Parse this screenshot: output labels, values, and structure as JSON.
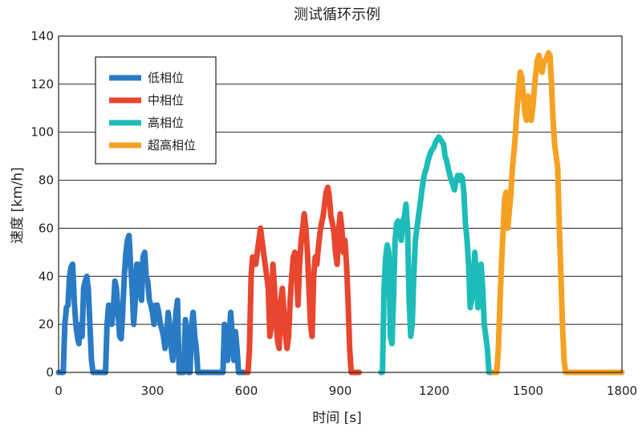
{
  "chart_data": {
    "type": "line",
    "title": "测试循环示例",
    "xlabel": "时间 [s]",
    "ylabel": "速度 [km/h]",
    "xlim": [
      0,
      1800
    ],
    "ylim": [
      0,
      140
    ],
    "x_ticks": [
      0,
      300,
      600,
      900,
      1200,
      1500,
      1800
    ],
    "y_ticks": [
      0,
      20,
      40,
      60,
      80,
      100,
      120,
      140
    ],
    "grid": "horizontal",
    "legend_position": "top-left",
    "series": [
      {
        "name": "低相位",
        "color": "#2a7bc4",
        "points": [
          [
            0,
            0
          ],
          [
            15,
            0
          ],
          [
            20,
            20
          ],
          [
            25,
            27
          ],
          [
            30,
            28
          ],
          [
            35,
            40
          ],
          [
            40,
            44
          ],
          [
            45,
            45
          ],
          [
            50,
            30
          ],
          [
            55,
            20
          ],
          [
            60,
            15
          ],
          [
            65,
            12
          ],
          [
            70,
            20
          ],
          [
            75,
            15
          ],
          [
            80,
            35
          ],
          [
            85,
            38
          ],
          [
            90,
            40
          ],
          [
            95,
            35
          ],
          [
            100,
            20
          ],
          [
            105,
            5
          ],
          [
            110,
            0
          ],
          [
            150,
            0
          ],
          [
            155,
            20
          ],
          [
            160,
            28
          ],
          [
            165,
            25
          ],
          [
            170,
            20
          ],
          [
            175,
            27
          ],
          [
            180,
            38
          ],
          [
            185,
            35
          ],
          [
            190,
            25
          ],
          [
            195,
            15
          ],
          [
            200,
            14
          ],
          [
            205,
            25
          ],
          [
            210,
            40
          ],
          [
            215,
            50
          ],
          [
            220,
            55
          ],
          [
            225,
            57
          ],
          [
            230,
            45
          ],
          [
            235,
            35
          ],
          [
            240,
            20
          ],
          [
            245,
            30
          ],
          [
            250,
            45
          ],
          [
            255,
            45
          ],
          [
            260,
            35
          ],
          [
            265,
            30
          ],
          [
            270,
            48
          ],
          [
            275,
            50
          ],
          [
            280,
            40
          ],
          [
            285,
            38
          ],
          [
            290,
            30
          ],
          [
            295,
            28
          ],
          [
            300,
            25
          ],
          [
            305,
            20
          ],
          [
            310,
            28
          ],
          [
            315,
            28
          ],
          [
            320,
            25
          ],
          [
            325,
            20
          ],
          [
            330,
            18
          ],
          [
            335,
            15
          ],
          [
            340,
            10
          ],
          [
            345,
            15
          ],
          [
            350,
            25
          ],
          [
            355,
            20
          ],
          [
            360,
            10
          ],
          [
            365,
            5
          ],
          [
            370,
            15
          ],
          [
            375,
            25
          ],
          [
            380,
            30
          ],
          [
            385,
            0
          ],
          [
            400,
            0
          ],
          [
            405,
            22
          ],
          [
            410,
            15
          ],
          [
            415,
            0
          ],
          [
            420,
            0
          ],
          [
            425,
            20
          ],
          [
            430,
            25
          ],
          [
            435,
            15
          ],
          [
            440,
            10
          ],
          [
            445,
            0
          ],
          [
            525,
            0
          ],
          [
            530,
            20
          ],
          [
            535,
            15
          ],
          [
            540,
            5
          ],
          [
            545,
            15
          ],
          [
            550,
            25
          ],
          [
            555,
            15
          ],
          [
            560,
            5
          ],
          [
            565,
            17
          ],
          [
            570,
            10
          ],
          [
            575,
            0
          ],
          [
            600,
            0
          ]
        ]
      },
      {
        "name": "中相位",
        "color": "#e8462f",
        "points": [
          [
            600,
            0
          ],
          [
            605,
            0
          ],
          [
            610,
            10
          ],
          [
            615,
            40
          ],
          [
            620,
            48
          ],
          [
            625,
            45
          ],
          [
            630,
            45
          ],
          [
            635,
            50
          ],
          [
            640,
            55
          ],
          [
            645,
            60
          ],
          [
            650,
            55
          ],
          [
            655,
            50
          ],
          [
            660,
            45
          ],
          [
            665,
            40
          ],
          [
            670,
            35
          ],
          [
            675,
            15
          ],
          [
            680,
            20
          ],
          [
            685,
            45
          ],
          [
            690,
            35
          ],
          [
            695,
            20
          ],
          [
            700,
            13
          ],
          [
            705,
            10
          ],
          [
            710,
            30
          ],
          [
            715,
            35
          ],
          [
            720,
            25
          ],
          [
            725,
            15
          ],
          [
            730,
            10
          ],
          [
            735,
            15
          ],
          [
            740,
            30
          ],
          [
            745,
            40
          ],
          [
            750,
            48
          ],
          [
            755,
            50
          ],
          [
            760,
            45
          ],
          [
            765,
            28
          ],
          [
            770,
            45
          ],
          [
            775,
            55
          ],
          [
            780,
            60
          ],
          [
            785,
            66
          ],
          [
            790,
            60
          ],
          [
            795,
            50
          ],
          [
            800,
            35
          ],
          [
            805,
            20
          ],
          [
            810,
            15
          ],
          [
            815,
            40
          ],
          [
            820,
            48
          ],
          [
            825,
            45
          ],
          [
            830,
            52
          ],
          [
            835,
            58
          ],
          [
            840,
            62
          ],
          [
            845,
            65
          ],
          [
            850,
            70
          ],
          [
            855,
            75
          ],
          [
            860,
            77
          ],
          [
            865,
            73
          ],
          [
            870,
            65
          ],
          [
            875,
            62
          ],
          [
            880,
            58
          ],
          [
            885,
            50
          ],
          [
            890,
            45
          ],
          [
            895,
            60
          ],
          [
            900,
            66
          ],
          [
            905,
            60
          ],
          [
            910,
            50
          ],
          [
            915,
            55
          ],
          [
            920,
            45
          ],
          [
            925,
            30
          ],
          [
            930,
            10
          ],
          [
            935,
            0
          ],
          [
            960,
            0
          ]
        ]
      },
      {
        "name": "高相位",
        "color": "#1ebcb8",
        "points": [
          [
            1030,
            0
          ],
          [
            1035,
            0
          ],
          [
            1040,
            35
          ],
          [
            1045,
            48
          ],
          [
            1050,
            53
          ],
          [
            1055,
            50
          ],
          [
            1060,
            15
          ],
          [
            1065,
            12
          ],
          [
            1070,
            30
          ],
          [
            1075,
            55
          ],
          [
            1080,
            62
          ],
          [
            1085,
            63
          ],
          [
            1090,
            60
          ],
          [
            1095,
            55
          ],
          [
            1100,
            63
          ],
          [
            1105,
            65
          ],
          [
            1110,
            70
          ],
          [
            1115,
            60
          ],
          [
            1120,
            30
          ],
          [
            1125,
            15
          ],
          [
            1130,
            20
          ],
          [
            1135,
            40
          ],
          [
            1140,
            55
          ],
          [
            1145,
            60
          ],
          [
            1150,
            65
          ],
          [
            1155,
            70
          ],
          [
            1160,
            75
          ],
          [
            1165,
            80
          ],
          [
            1170,
            83
          ],
          [
            1175,
            85
          ],
          [
            1180,
            88
          ],
          [
            1185,
            90
          ],
          [
            1190,
            92
          ],
          [
            1195,
            93
          ],
          [
            1200,
            94
          ],
          [
            1205,
            96
          ],
          [
            1210,
            97
          ],
          [
            1215,
            98
          ],
          [
            1220,
            97
          ],
          [
            1225,
            96
          ],
          [
            1230,
            95
          ],
          [
            1235,
            90
          ],
          [
            1240,
            88
          ],
          [
            1245,
            85
          ],
          [
            1250,
            82
          ],
          [
            1255,
            80
          ],
          [
            1260,
            78
          ],
          [
            1265,
            76
          ],
          [
            1270,
            80
          ],
          [
            1275,
            82
          ],
          [
            1280,
            80
          ],
          [
            1285,
            82
          ],
          [
            1290,
            81
          ],
          [
            1295,
            75
          ],
          [
            1300,
            62
          ],
          [
            1305,
            55
          ],
          [
            1310,
            45
          ],
          [
            1315,
            27
          ],
          [
            1320,
            30
          ],
          [
            1325,
            38
          ],
          [
            1330,
            50
          ],
          [
            1335,
            40
          ],
          [
            1340,
            27
          ],
          [
            1345,
            35
          ],
          [
            1350,
            45
          ],
          [
            1355,
            35
          ],
          [
            1360,
            20
          ],
          [
            1365,
            15
          ],
          [
            1370,
            10
          ],
          [
            1375,
            0
          ],
          [
            1390,
            0
          ]
        ]
      },
      {
        "name": "超高相位",
        "color": "#f5a122",
        "points": [
          [
            1390,
            0
          ],
          [
            1400,
            0
          ],
          [
            1405,
            10
          ],
          [
            1410,
            28
          ],
          [
            1415,
            45
          ],
          [
            1420,
            58
          ],
          [
            1425,
            72
          ],
          [
            1430,
            75
          ],
          [
            1435,
            60
          ],
          [
            1440,
            67
          ],
          [
            1445,
            74
          ],
          [
            1450,
            85
          ],
          [
            1455,
            92
          ],
          [
            1460,
            100
          ],
          [
            1465,
            110
          ],
          [
            1470,
            118
          ],
          [
            1475,
            125
          ],
          [
            1480,
            123
          ],
          [
            1485,
            115
          ],
          [
            1490,
            108
          ],
          [
            1495,
            105
          ],
          [
            1500,
            115
          ],
          [
            1505,
            110
          ],
          [
            1510,
            105
          ],
          [
            1515,
            110
          ],
          [
            1520,
            118
          ],
          [
            1525,
            125
          ],
          [
            1530,
            130
          ],
          [
            1535,
            132
          ],
          [
            1540,
            128
          ],
          [
            1545,
            125
          ],
          [
            1550,
            129
          ],
          [
            1555,
            130
          ],
          [
            1560,
            131
          ],
          [
            1565,
            133
          ],
          [
            1570,
            132
          ],
          [
            1575,
            120
          ],
          [
            1580,
            105
          ],
          [
            1585,
            95
          ],
          [
            1590,
            90
          ],
          [
            1595,
            85
          ],
          [
            1600,
            60
          ],
          [
            1605,
            40
          ],
          [
            1610,
            20
          ],
          [
            1615,
            5
          ],
          [
            1620,
            0
          ],
          [
            1800,
            0
          ]
        ]
      }
    ]
  }
}
